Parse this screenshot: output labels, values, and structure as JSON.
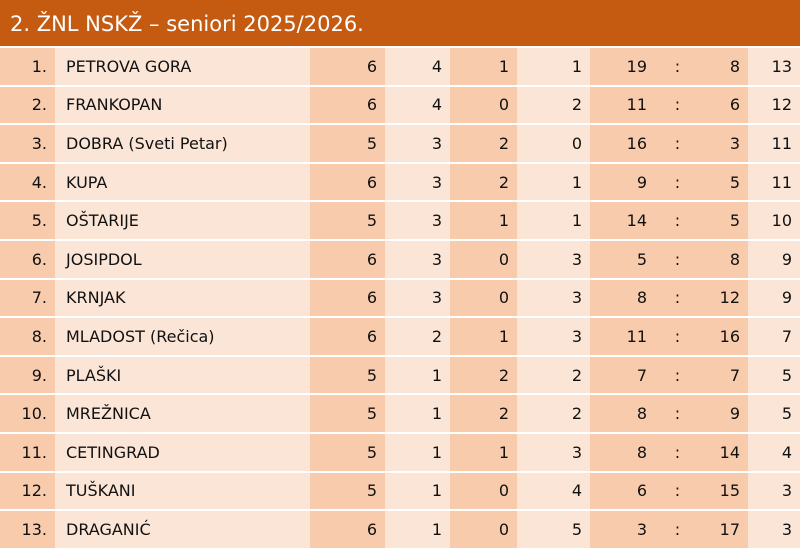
{
  "title": "2. ŽNL NSKŽ – seniori 2025/2026.",
  "colors": {
    "header": "#c55a11",
    "cell_light": "#fbe5d6",
    "cell_dark": "#f8cbad"
  },
  "separator": ":",
  "rows": [
    {
      "rank": "1.",
      "team": "PETROVA GORA",
      "played": "6",
      "won": "4",
      "drawn": "1",
      "lost": "1",
      "gf": "19",
      "ga": "8",
      "pts": "13"
    },
    {
      "rank": "2.",
      "team": "FRANKOPAN",
      "played": "6",
      "won": "4",
      "drawn": "0",
      "lost": "2",
      "gf": "11",
      "ga": "6",
      "pts": "12"
    },
    {
      "rank": "3.",
      "team": "DOBRA (Sveti Petar)",
      "played": "5",
      "won": "3",
      "drawn": "2",
      "lost": "0",
      "gf": "16",
      "ga": "3",
      "pts": "11"
    },
    {
      "rank": "4.",
      "team": "KUPA",
      "played": "6",
      "won": "3",
      "drawn": "2",
      "lost": "1",
      "gf": "9",
      "ga": "5",
      "pts": "11"
    },
    {
      "rank": "5.",
      "team": "OŠTARIJE",
      "played": "5",
      "won": "3",
      "drawn": "1",
      "lost": "1",
      "gf": "14",
      "ga": "5",
      "pts": "10"
    },
    {
      "rank": "6.",
      "team": "JOSIPDOL",
      "played": "6",
      "won": "3",
      "drawn": "0",
      "lost": "3",
      "gf": "5",
      "ga": "8",
      "pts": "9"
    },
    {
      "rank": "7.",
      "team": "KRNJAK",
      "played": "6",
      "won": "3",
      "drawn": "0",
      "lost": "3",
      "gf": "8",
      "ga": "12",
      "pts": "9"
    },
    {
      "rank": "8.",
      "team": "MLADOST (Rečica)",
      "played": "6",
      "won": "2",
      "drawn": "1",
      "lost": "3",
      "gf": "11",
      "ga": "16",
      "pts": "7"
    },
    {
      "rank": "9.",
      "team": "PLAŠKI",
      "played": "5",
      "won": "1",
      "drawn": "2",
      "lost": "2",
      "gf": "7",
      "ga": "7",
      "pts": "5"
    },
    {
      "rank": "10.",
      "team": "MREŽNICA",
      "played": "5",
      "won": "1",
      "drawn": "2",
      "lost": "2",
      "gf": "8",
      "ga": "9",
      "pts": "5"
    },
    {
      "rank": "11.",
      "team": "CETINGRAD",
      "played": "5",
      "won": "1",
      "drawn": "1",
      "lost": "3",
      "gf": "8",
      "ga": "14",
      "pts": "4"
    },
    {
      "rank": "12.",
      "team": "TUŠKANI",
      "played": "5",
      "won": "1",
      "drawn": "0",
      "lost": "4",
      "gf": "6",
      "ga": "15",
      "pts": "3"
    },
    {
      "rank": "13.",
      "team": "DRAGANIĆ",
      "played": "6",
      "won": "1",
      "drawn": "0",
      "lost": "5",
      "gf": "3",
      "ga": "17",
      "pts": "3"
    }
  ]
}
